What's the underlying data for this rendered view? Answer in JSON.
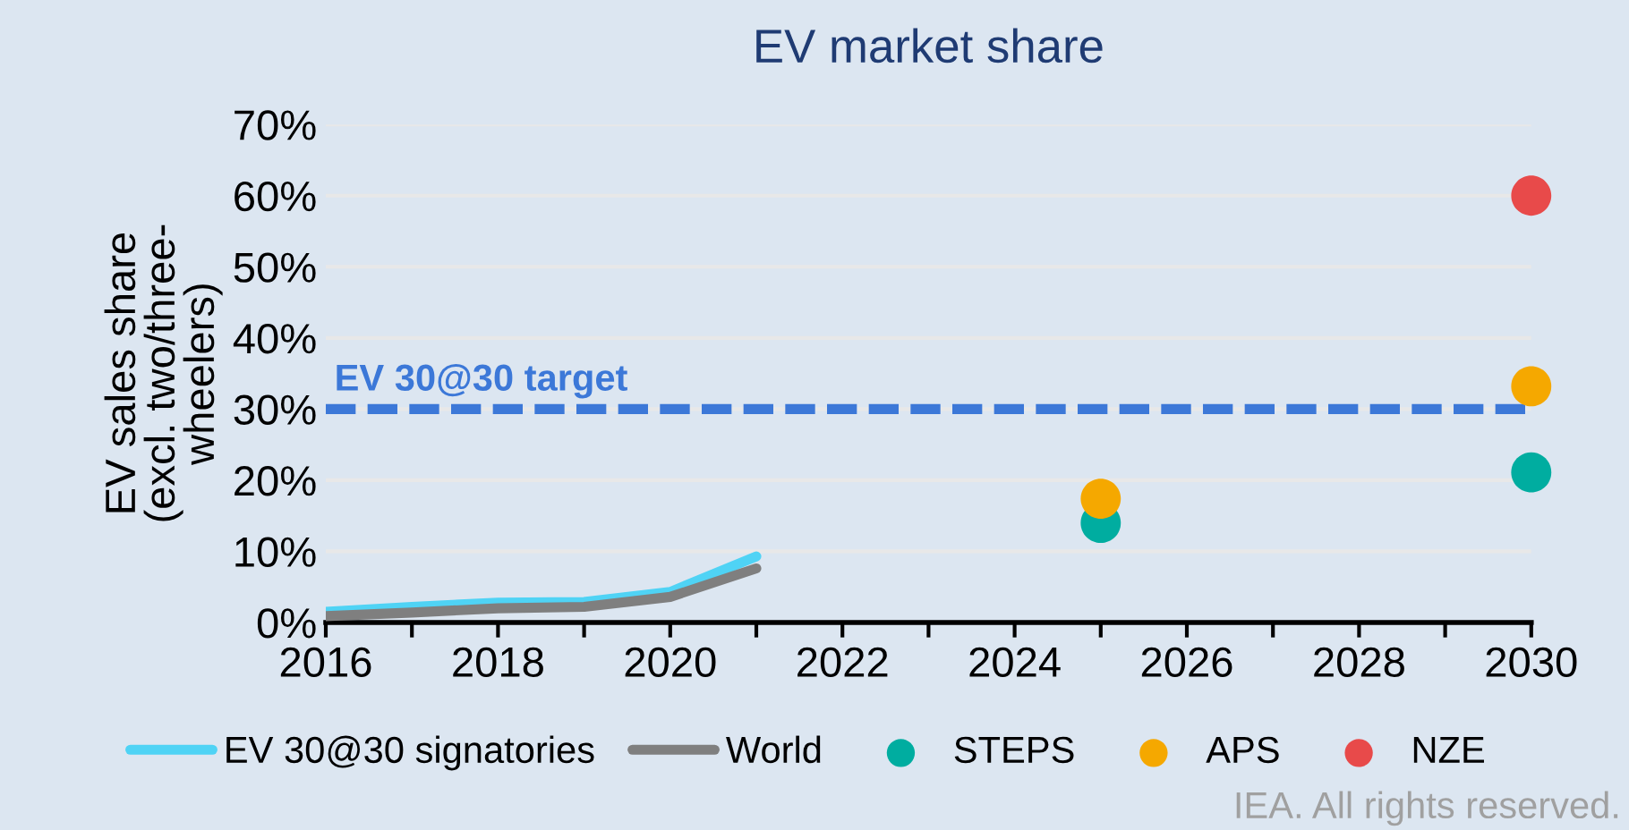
{
  "chart_data": {
    "type": "line",
    "title": "EV market share",
    "ylabel": "EV sales share\n(excl. two/three-\nwheelers)",
    "xlim": [
      2016,
      2030
    ],
    "xticks": [
      2016,
      {
        "value": 2017,
        "label": null
      },
      2018,
      {
        "value": 2019,
        "label": null
      },
      2020,
      {
        "value": 2021,
        "label": null
      },
      2022,
      {
        "value": 2023,
        "label": null
      },
      2024,
      {
        "value": 2025,
        "label": null
      },
      2026,
      {
        "value": 2027,
        "label": null
      },
      2028,
      {
        "value": 2029,
        "label": null
      },
      2030
    ],
    "ylim": [
      0,
      70
    ],
    "yticks": [
      {
        "value": 0,
        "label": "0%"
      },
      {
        "value": 10,
        "label": "10%"
      },
      {
        "value": 20,
        "label": "20%"
      },
      {
        "value": 30,
        "label": "30%"
      },
      {
        "value": 40,
        "label": "40%"
      },
      {
        "value": 50,
        "label": "50%"
      },
      {
        "value": 60,
        "label": "60%"
      },
      {
        "value": 70,
        "label": "70%"
      }
    ],
    "grid": "y",
    "legend": "bottom",
    "series": [
      {
        "name": "EV 30@30 signatories",
        "color": "#4fd3f5",
        "x": [
          2016,
          2017,
          2018,
          2019,
          2020,
          2021
        ],
        "values": [
          1.5,
          2.2,
          2.8,
          2.9,
          4.3,
          9.3
        ]
      },
      {
        "name": "World",
        "color": "#7f7f7f",
        "x": [
          2016,
          2017,
          2018,
          2019,
          2020,
          2021
        ],
        "values": [
          0.9,
          1.4,
          2.0,
          2.2,
          3.6,
          7.6
        ]
      },
      {
        "name": "STEPS",
        "type": "scatter",
        "color": "#00ada0",
        "x": [
          2025,
          2030
        ],
        "values": [
          14,
          21.1
        ]
      },
      {
        "name": "APS",
        "type": "scatter",
        "color": "#f5a800",
        "x": [
          2025,
          2030
        ],
        "values": [
          17.4,
          33.2
        ]
      },
      {
        "name": "NZE",
        "type": "scatter",
        "color": "#e84a4a",
        "x": [
          2030
        ],
        "values": [
          60
        ]
      }
    ],
    "ref_lines": [
      {
        "axis": "y",
        "value": 30,
        "label": "EV 30@30 target",
        "color": "#3c78d8",
        "line_style": "dashed"
      }
    ],
    "annotations": [
      "IEA. All rights reserved."
    ]
  }
}
